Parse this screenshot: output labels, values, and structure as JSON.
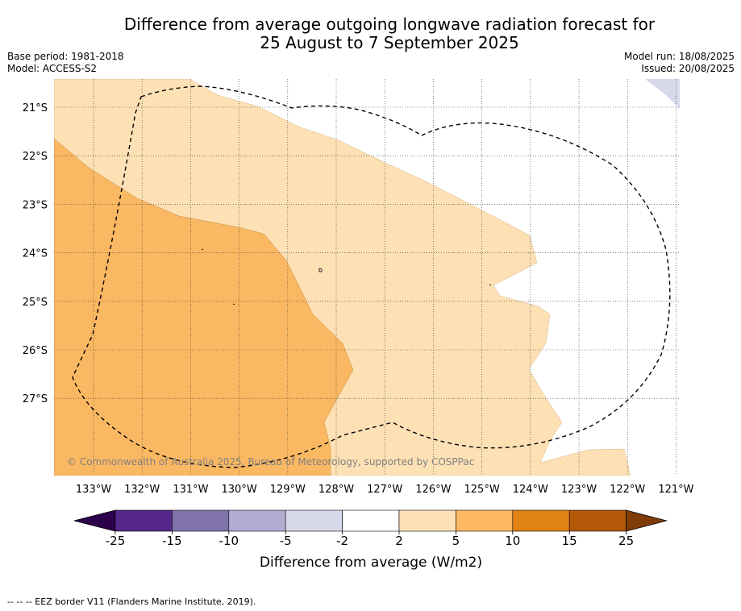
{
  "title": {
    "line1": "Difference from average outgoing longwave radiation forecast for",
    "line2": "25 August to 7 September 2025"
  },
  "meta": {
    "base_period": "Base period: 1981-2018",
    "model": "Model: ACCESS-S2",
    "model_run": "Model run: 18/08/2025",
    "issued": "Issued: 20/08/2025"
  },
  "map": {
    "copyright": "© Commonwealth of Australia 2025, Bureau of Meteorology, supported by COSPPac",
    "lon_labels": [
      "133°W",
      "132°W",
      "131°W",
      "130°W",
      "129°W",
      "128°W",
      "127°W",
      "126°W",
      "125°W",
      "124°W",
      "123°W",
      "122°W",
      "121°W"
    ],
    "lat_labels": [
      "21°S",
      "22°S",
      "23°S",
      "24°S",
      "25°S",
      "26°S",
      "27°S"
    ],
    "eez_border_style": "dashed black line",
    "colors": {
      "band_2_5": "#fde0b4",
      "band_5_10": "#fbb862",
      "band_minus5_minus2": "#d9d9ec"
    }
  },
  "colorbar": {
    "title": "Difference from average (W/m2)",
    "tick_labels": [
      "-25",
      "-15",
      "-10",
      "-5",
      "-2",
      "2",
      "5",
      "10",
      "15",
      "25"
    ],
    "colors": [
      "#2d004b",
      "#542788",
      "#8073ac",
      "#b2abd2",
      "#d8daeb",
      "#ffffff",
      "#fee0b6",
      "#fdb863",
      "#e08214",
      "#b35806",
      "#7f3b08"
    ]
  },
  "footnote": "--  --  -- EEZ border V11 (Flanders Marine Institute, 2019)."
}
